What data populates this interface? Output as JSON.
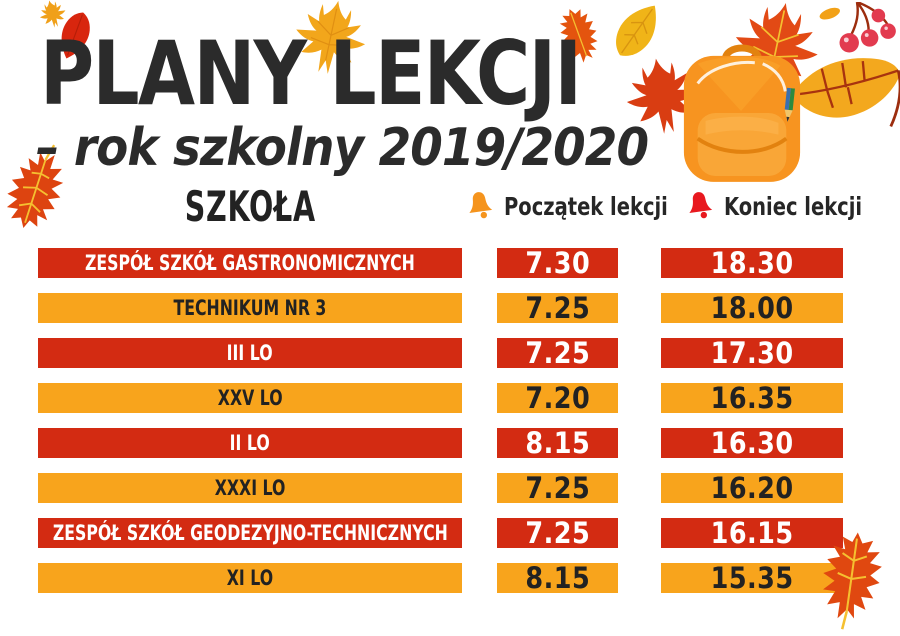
{
  "header": {
    "title": "PLANY LEKCJI",
    "subtitle": "– rok szkolny 2019/2020"
  },
  "table": {
    "school_header": "SZKOŁA",
    "legend": [
      {
        "icon": "bell-orange-icon",
        "label": "Początek lekcji",
        "color": "#f5941d"
      },
      {
        "icon": "bell-red-icon",
        "label": "Koniec lekcji",
        "color": "#e8191f"
      }
    ],
    "rows": [
      {
        "school": "ZESPÓŁ SZKÓŁ GASTRONOMICZNYCH",
        "start": "7.30",
        "end": "18.30",
        "variant": "red"
      },
      {
        "school": "TECHNIKUM NR 3",
        "start": "7.25",
        "end": "18.00",
        "variant": "orange"
      },
      {
        "school": "III LO",
        "start": "7.25",
        "end": "17.30",
        "variant": "red"
      },
      {
        "school": "XXV LO",
        "start": "7.20",
        "end": "16.35",
        "variant": "orange"
      },
      {
        "school": "II LO",
        "start": "8.15",
        "end": "16.30",
        "variant": "red"
      },
      {
        "school": "XXXI LO",
        "start": "7.25",
        "end": "16.20",
        "variant": "orange"
      },
      {
        "school": "ZESPÓŁ SZKÓŁ GEODEZYJNO-TECHNICZNYCH",
        "start": "7.25",
        "end": "16.15",
        "variant": "red"
      },
      {
        "school": "XI LO",
        "start": "8.15",
        "end": "15.35",
        "variant": "orange"
      }
    ]
  },
  "chart_data": {
    "type": "table",
    "title": "PLANY LEKCJI",
    "subtitle": "– rok szkolny 2019/2020",
    "columns": [
      "SZKOŁA",
      "Początek lekcji",
      "Koniec lekcji"
    ],
    "rows": [
      [
        "ZESPÓŁ SZKÓŁ GASTRONOMICZNYCH",
        "7.30",
        "18.30"
      ],
      [
        "TECHNIKUM NR 3",
        "7.25",
        "18.00"
      ],
      [
        "III LO",
        "7.25",
        "17.30"
      ],
      [
        "XXV LO",
        "7.20",
        "16.35"
      ],
      [
        "II LO",
        "8.15",
        "16.30"
      ],
      [
        "XXXI LO",
        "7.25",
        "16.20"
      ],
      [
        "ZESPÓŁ SZKÓŁ GEODEZYJNO-TECHNICZNYCH",
        "7.25",
        "16.15"
      ],
      [
        "XI LO",
        "8.15",
        "15.35"
      ]
    ],
    "layout_hints": {
      "row_colors_alternate": [
        "red",
        "orange"
      ],
      "times_format": "H.MM"
    }
  },
  "colors": {
    "red": "#d32b12",
    "orange": "#f8a41c",
    "ink": "#2b2b2b",
    "bell_start": "#f5941d",
    "bell_end": "#e8191f",
    "leaf_red": "#dd4410",
    "leaf_yellow": "#f2a61b",
    "berry": "#e23b4f"
  }
}
